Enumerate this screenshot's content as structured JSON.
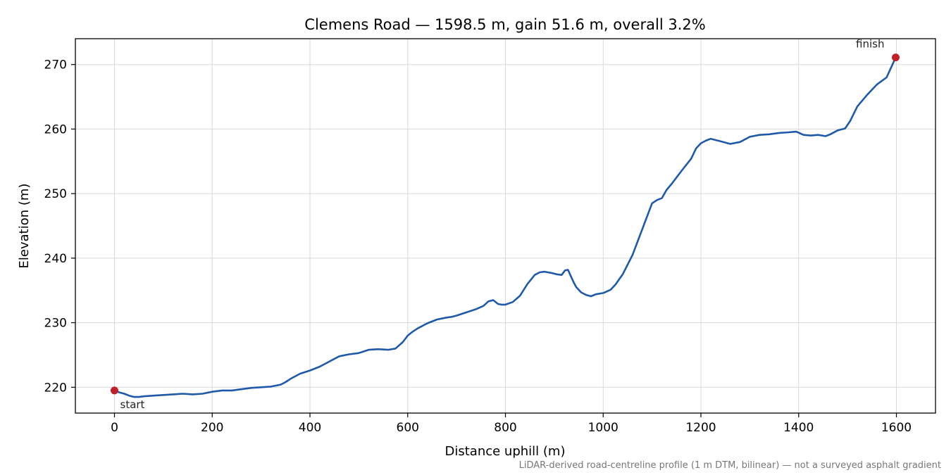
{
  "chart_data": {
    "type": "line",
    "title": "Clemens Road — 1598.5 m, gain 51.6 m, overall 3.2%",
    "xlabel": "Distance uphill (m)",
    "ylabel": "Elevation (m)",
    "xlim": [
      -80,
      1680
    ],
    "ylim": [
      216,
      274
    ],
    "xticks": [
      0,
      200,
      400,
      600,
      800,
      1000,
      1200,
      1400,
      1600
    ],
    "yticks": [
      220,
      230,
      240,
      250,
      260,
      270
    ],
    "grid": true,
    "line_color": "#1f5aa8",
    "marker_color": "#c0202a",
    "series": [
      {
        "x": [
          0,
          10,
          20,
          30,
          40,
          50,
          60,
          80,
          100,
          120,
          140,
          160,
          180,
          200,
          220,
          240,
          260,
          280,
          300,
          320,
          340,
          350,
          360,
          380,
          400,
          420,
          440,
          460,
          480,
          500,
          520,
          540,
          560,
          575,
          590,
          600,
          610,
          620,
          640,
          660,
          680,
          690,
          700,
          720,
          740,
          755,
          765,
          775,
          785,
          792,
          800,
          815,
          830,
          845,
          860,
          870,
          880,
          895,
          905,
          915,
          922,
          928,
          935,
          940,
          945,
          955,
          965,
          975,
          985,
          1000,
          1015,
          1025,
          1040,
          1060,
          1080,
          1100,
          1110,
          1120,
          1130,
          1140,
          1160,
          1180,
          1190,
          1200,
          1210,
          1220,
          1240,
          1260,
          1280,
          1300,
          1320,
          1340,
          1360,
          1380,
          1395,
          1410,
          1425,
          1440,
          1455,
          1465,
          1480,
          1495,
          1505,
          1520,
          1540,
          1560,
          1580,
          1598.5
        ],
        "y": [
          219.5,
          219.2,
          219.0,
          218.7,
          218.5,
          218.5,
          218.6,
          218.7,
          218.8,
          218.9,
          219.0,
          218.9,
          219.0,
          219.3,
          219.5,
          219.5,
          219.7,
          219.9,
          220.0,
          220.1,
          220.4,
          220.8,
          221.3,
          222.1,
          222.6,
          223.2,
          224.0,
          224.8,
          225.1,
          225.3,
          225.8,
          225.9,
          225.8,
          226.0,
          227.0,
          228.0,
          228.6,
          229.1,
          229.9,
          230.5,
          230.8,
          230.9,
          231.1,
          231.6,
          232.1,
          232.6,
          233.3,
          233.5,
          232.9,
          232.8,
          232.8,
          233.2,
          234.2,
          236.0,
          237.4,
          237.8,
          237.9,
          237.7,
          237.5,
          237.4,
          238.1,
          238.2,
          237.0,
          236.2,
          235.5,
          234.7,
          234.3,
          234.1,
          234.4,
          234.6,
          235.1,
          235.9,
          237.5,
          240.5,
          244.5,
          248.5,
          249.0,
          249.3,
          250.6,
          251.5,
          253.5,
          255.4,
          257.0,
          257.8,
          258.2,
          258.5,
          258.1,
          257.7,
          258.0,
          258.8,
          259.1,
          259.2,
          259.4,
          259.5,
          259.6,
          259.1,
          259.0,
          259.1,
          258.9,
          259.2,
          259.8,
          260.1,
          261.2,
          263.5,
          265.3,
          266.9,
          268.0,
          271.1
        ]
      }
    ],
    "annotations": [
      {
        "text": "start",
        "x": 0,
        "y": 219.5
      },
      {
        "text": "finish",
        "x": 1598.5,
        "y": 271.1
      }
    ],
    "footnote": "LiDAR-derived road-centreline profile (1 m DTM, bilinear) — not a surveyed asphalt gradient"
  }
}
